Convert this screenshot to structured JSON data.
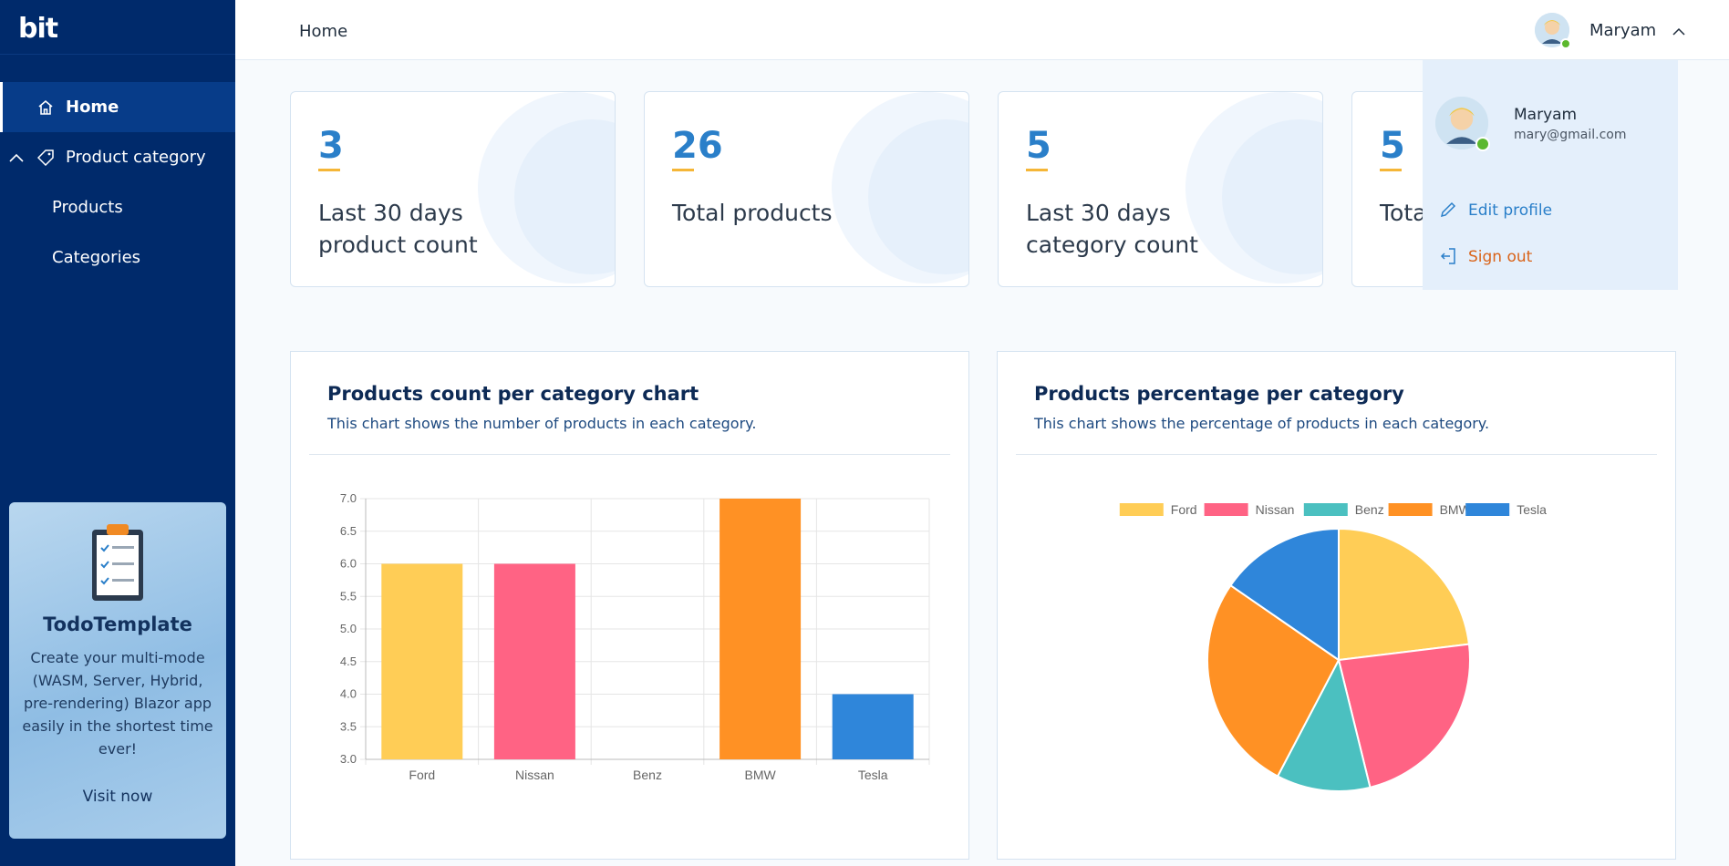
{
  "sidebar": {
    "logo": "bit",
    "items": [
      {
        "label": "Home",
        "icon": "home-icon"
      },
      {
        "label": "Product category",
        "icon": "tag-icon"
      },
      {
        "label": "Products"
      },
      {
        "label": "Categories"
      }
    ],
    "promo": {
      "title": "TodoTemplate",
      "description": "Create your multi-mode (WASM, Server, Hybrid, pre-rendering) Blazor app easily in the shortest time ever!",
      "link": "Visit now"
    }
  },
  "header": {
    "breadcrumb": "Home",
    "user_name": "Maryam"
  },
  "stats": [
    {
      "value": "3",
      "label": "Last 30 days product count"
    },
    {
      "value": "26",
      "label": "Total products"
    },
    {
      "value": "5",
      "label": "Last 30 days category count"
    },
    {
      "value": "5",
      "label": "Tota"
    }
  ],
  "user_menu": {
    "name": "Maryam",
    "email": "mary@gmail.com",
    "edit_profile": "Edit profile",
    "sign_out": "Sign out"
  },
  "panels": {
    "bar": {
      "title": "Products count per category chart",
      "subtitle": "This chart shows the number of products in each category."
    },
    "pie": {
      "title": "Products percentage per category",
      "subtitle": "This chart shows the percentage of products in each category."
    }
  },
  "colors": {
    "Ford": "#ffcd56",
    "Nissan": "#ff6384",
    "Benz": "#4bc0c0",
    "BMW": "#ff9124",
    "Tesla": "#2f86da"
  },
  "chart_data": [
    {
      "type": "bar",
      "categories": [
        "Ford",
        "Nissan",
        "Benz",
        "BMW",
        "Tesla"
      ],
      "values": [
        6,
        6,
        3,
        7,
        4
      ],
      "ylim": [
        3,
        7
      ],
      "yticks": [
        "3.0",
        "3.5",
        "4.0",
        "4.5",
        "5.0",
        "5.5",
        "6.0",
        "6.5",
        "7.0"
      ],
      "grid": true
    },
    {
      "type": "pie",
      "categories": [
        "Ford",
        "Nissan",
        "Benz",
        "BMW",
        "Tesla"
      ],
      "values": [
        6,
        6,
        3,
        7,
        4
      ],
      "legend": "top"
    }
  ]
}
